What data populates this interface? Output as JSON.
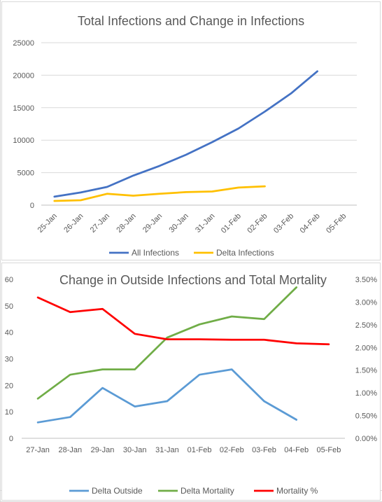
{
  "chart_data": [
    {
      "type": "line",
      "title": "Total Infections and Change in Infections",
      "categories": [
        "25-Jan",
        "26-Jan",
        "27-Jan",
        "28-Jan",
        "29-Jan",
        "30-Jan",
        "31-Jan",
        "01-Feb",
        "02-Feb",
        "03-Feb",
        "04-Feb",
        "05-Feb"
      ],
      "ylim": [
        0,
        25000
      ],
      "yticks": [
        "0",
        "5000",
        "10000",
        "15000",
        "20000",
        "25000"
      ],
      "grid": true,
      "legend_position": "bottom",
      "series": [
        {
          "name": "All Infections",
          "color": "#4472c4",
          "values": [
            1300,
            1950,
            2800,
            4550,
            6050,
            7750,
            9700,
            11800,
            14400,
            17200,
            20600,
            null
          ]
        },
        {
          "name": "Delta Infections",
          "color": "#ffc000",
          "values": [
            650,
            750,
            1750,
            1450,
            1750,
            2000,
            2100,
            2700,
            2900,
            null,
            null,
            null
          ]
        }
      ]
    },
    {
      "type": "line",
      "title": "Change in Outside Infections and Total Mortality",
      "categories": [
        "27-Jan",
        "28-Jan",
        "29-Jan",
        "30-Jan",
        "31-Jan",
        "01-Feb",
        "02-Feb",
        "03-Feb",
        "04-Feb",
        "05-Feb"
      ],
      "ylim": [
        0,
        60
      ],
      "yticks": [
        "0",
        "10",
        "20",
        "30",
        "40",
        "50",
        "60"
      ],
      "y2lim": [
        0,
        3.5
      ],
      "y2ticks": [
        "0.00%",
        "0.50%",
        "1.00%",
        "1.50%",
        "2.00%",
        "2.50%",
        "3.00%",
        "3.50%"
      ],
      "grid": false,
      "legend_position": "bottom",
      "series": [
        {
          "name": "Delta Outside",
          "color": "#5b9bd5",
          "axis": "left",
          "values": [
            6,
            8,
            19,
            12,
            14,
            24,
            26,
            14,
            7,
            null
          ]
        },
        {
          "name": "Delta Mortality",
          "color": "#70ad47",
          "axis": "left",
          "values": [
            15,
            24,
            26,
            26,
            38,
            43,
            46,
            45,
            57,
            null
          ]
        },
        {
          "name": "Mortality %",
          "color": "#ff0000",
          "axis": "right",
          "values": [
            3.1,
            2.78,
            2.85,
            2.3,
            2.18,
            2.18,
            2.17,
            2.17,
            2.09,
            2.07
          ]
        }
      ]
    }
  ]
}
